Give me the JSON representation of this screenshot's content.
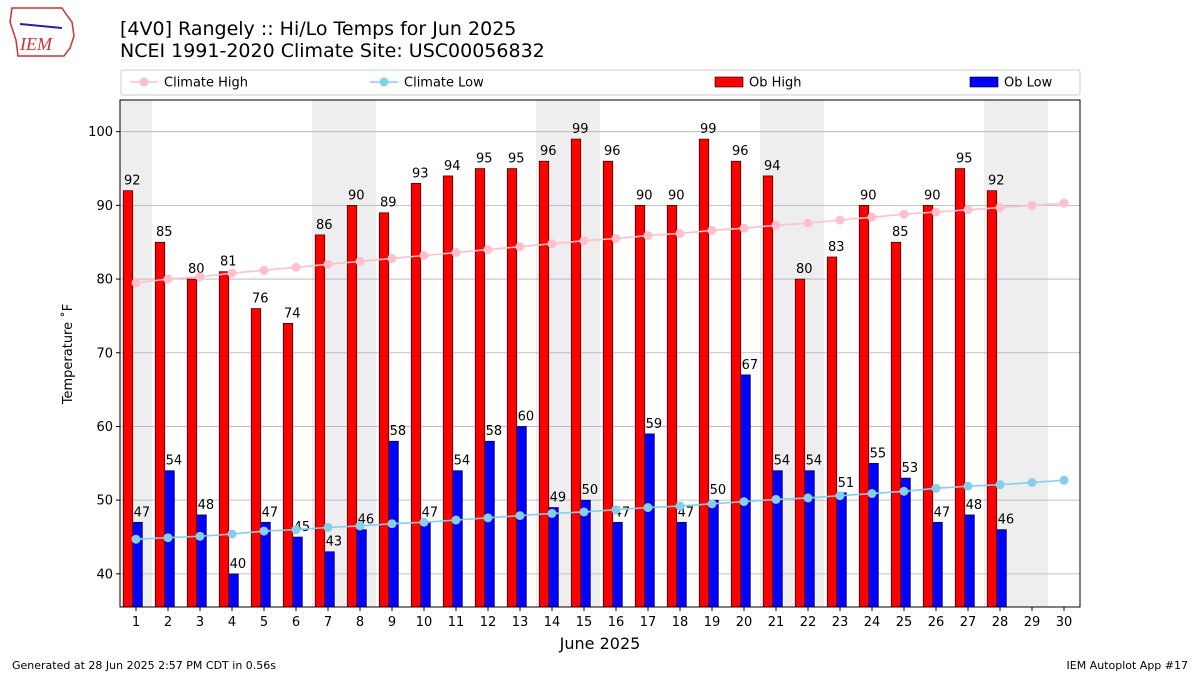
{
  "chart_data": {
    "type": "bar",
    "title": "[4V0] Rangely :: Hi/Lo Temps for Jun 2025",
    "subtitle": "NCEI 1991-2020 Climate Site: USC00056832",
    "logo": "IEM",
    "y_label": "Temperature ˚F",
    "x_label": "June 2025",
    "footer_left": "Generated at 28 Jun 2025 2:57 PM CDT in 0.56s",
    "footer_right": "IEM Autoplot App #17",
    "categories": [
      "1",
      "2",
      "3",
      "4",
      "5",
      "6",
      "7",
      "8",
      "9",
      "10",
      "11",
      "12",
      "13",
      "14",
      "15",
      "16",
      "17",
      "18",
      "19",
      "20",
      "21",
      "22",
      "23",
      "24",
      "25",
      "26",
      "27",
      "28",
      "29",
      "30"
    ],
    "series": [
      {
        "name": "Climate High",
        "type": "line",
        "color": "#ffc0cb",
        "values": [
          79.5,
          80.0,
          80.3,
          80.8,
          81.2,
          81.6,
          82.0,
          82.4,
          82.8,
          83.2,
          83.6,
          84.0,
          84.4,
          84.8,
          85.2,
          85.5,
          85.9,
          86.2,
          86.6,
          86.9,
          87.3,
          87.6,
          88.0,
          88.4,
          88.8,
          89.1,
          89.4,
          89.7,
          90.0,
          90.3
        ]
      },
      {
        "name": "Climate Low",
        "type": "line",
        "color": "#87ceeb",
        "values": [
          44.7,
          44.9,
          45.1,
          45.4,
          45.8,
          46.0,
          46.3,
          46.5,
          46.8,
          47.0,
          47.3,
          47.6,
          47.9,
          48.2,
          48.4,
          48.7,
          49.0,
          49.2,
          49.5,
          49.8,
          50.1,
          50.3,
          50.6,
          50.9,
          51.2,
          51.6,
          51.9,
          52.1,
          52.4,
          52.7
        ]
      },
      {
        "name": "Ob High",
        "type": "bar",
        "color": "#ff0000",
        "values": [
          92,
          85,
          80,
          81,
          76,
          74,
          86,
          90,
          89,
          93,
          94,
          95,
          95,
          96,
          99,
          96,
          90,
          90,
          99,
          96,
          94,
          80,
          83,
          90,
          85,
          90,
          95,
          92,
          null,
          null
        ]
      },
      {
        "name": "Ob Low",
        "type": "bar",
        "color": "#0000ff",
        "values": [
          47,
          54,
          48,
          40,
          47,
          45,
          43,
          46,
          58,
          47,
          54,
          58,
          60,
          49,
          50,
          47,
          59,
          47,
          50,
          67,
          54,
          54,
          51,
          55,
          53,
          47,
          48,
          46,
          null,
          null
        ]
      }
    ],
    "ylim": [
      35.5,
      104.3
    ],
    "yticks": [
      40,
      50,
      60,
      70,
      80,
      90,
      100
    ],
    "grid": true,
    "legend": "top"
  }
}
